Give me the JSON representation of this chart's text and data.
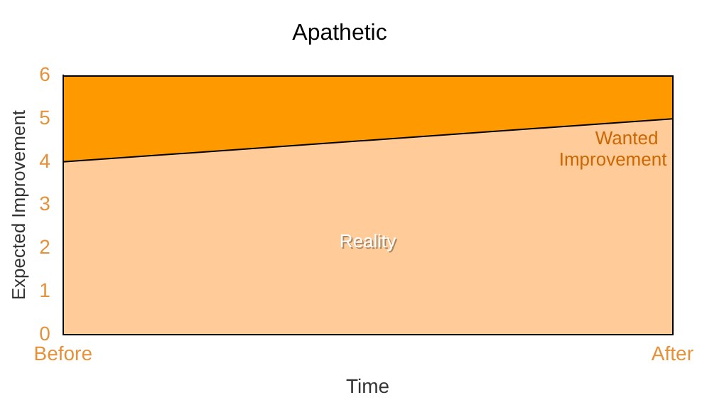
{
  "chart_data": {
    "type": "area",
    "title": "Apathetic",
    "xlabel": "Time",
    "ylabel": "Expected Improvement",
    "categories": [
      "Before",
      "After"
    ],
    "stacked": true,
    "series": [
      {
        "name": "Reality",
        "color": "#ffcc99",
        "values": [
          4,
          5
        ]
      },
      {
        "name": "Wanted Improvement",
        "color": "#ff9900",
        "values": [
          2,
          1
        ]
      }
    ],
    "ylim": [
      0,
      6
    ],
    "yticks": [
      0,
      1,
      2,
      3,
      4,
      5,
      6
    ],
    "grid": false,
    "legend": false,
    "marker": "none"
  }
}
